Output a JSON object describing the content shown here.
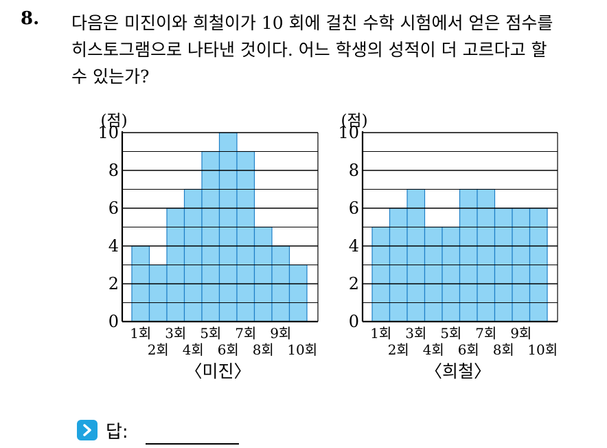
{
  "question": {
    "number": "8.",
    "lines": [
      "다음은 미진이와 희철이가 10 회에 걸친 수학 시험에서 얻은 점수를",
      "히스토그램으로 나타낸 것이다. 어느 학생의 성적이 더 고르다고 할",
      "수 있는가?"
    ]
  },
  "chart_data": [
    {
      "type": "bar",
      "title": "〈미진〉",
      "ylabel": "(점)",
      "ylim": [
        0,
        10
      ],
      "yticks": [
        "0",
        "2",
        "4",
        "6",
        "8",
        "10"
      ],
      "categories": [
        "1회",
        "2회",
        "3회",
        "4회",
        "5회",
        "6회",
        "7회",
        "8회",
        "9회",
        "10회"
      ],
      "values": [
        4,
        3,
        6,
        7,
        9,
        10,
        9,
        5,
        4,
        3
      ],
      "bar_color": "#8fd4f5",
      "grid": true
    },
    {
      "type": "bar",
      "title": "〈희철〉",
      "ylabel": "(점)",
      "ylim": [
        0,
        10
      ],
      "yticks": [
        "0",
        "2",
        "4",
        "6",
        "8",
        "10"
      ],
      "categories": [
        "1회",
        "2회",
        "3회",
        "4회",
        "5회",
        "6회",
        "7회",
        "8회",
        "9회",
        "10회"
      ],
      "values": [
        5,
        6,
        7,
        5,
        5,
        7,
        7,
        6,
        6,
        6
      ],
      "bar_color": "#8fd4f5",
      "grid": true
    }
  ],
  "answer": {
    "label": "답:",
    "icon": "chevron-right-icon",
    "accent": "#1ea3e0"
  }
}
